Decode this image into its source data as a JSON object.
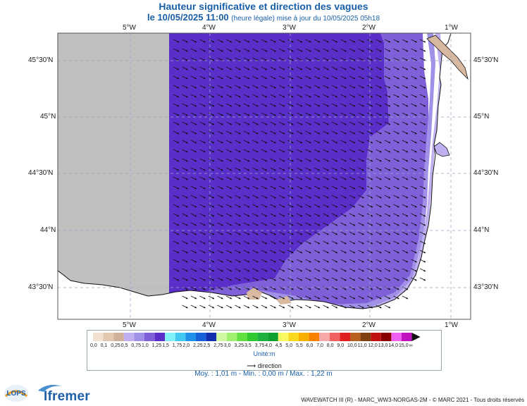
{
  "title": "Hauteur significative et direction des vagues",
  "subtitle_main": "le 10/05/2025 11:00",
  "subtitle_small": "(heure légale) mise à jour du 10/05/2025 05h18",
  "lon_labels": [
    "5°W",
    "4°W",
    "3°W",
    "2°W",
    "1°W"
  ],
  "lat_labels": [
    "45°30'N",
    "45°N",
    "44°30'N",
    "44°N",
    "43°30'N"
  ],
  "legend": {
    "labels": [
      "0,0",
      "0,1",
      "0,25",
      "0,5",
      "0,75",
      "1,0",
      "1,25",
      "1,5",
      "1,75",
      "2,0",
      "2,25",
      "2,5",
      "2,75",
      "3,0",
      "3,25",
      "3,5",
      "3,75",
      "4,0",
      "4,5",
      "5,0",
      "5,5",
      "6,0",
      "7,0",
      "8,0",
      "9,0",
      "10,0",
      "11,0",
      "12,0",
      "13,0",
      "14,0",
      "15,0",
      "∞"
    ],
    "colors": [
      "#f2e0d0",
      "#e2c8b0",
      "#d0b098",
      "#c0b0f0",
      "#a090e8",
      "#8060d8",
      "#5a2ec8",
      "#80f0f8",
      "#40c8f0",
      "#2090e8",
      "#1860d8",
      "#1030b0",
      "#d0f8a0",
      "#a0f070",
      "#60e040",
      "#30c830",
      "#20b040",
      "#10a030",
      "#f8f860",
      "#f8d820",
      "#f8b000",
      "#f88000",
      "#f8a8a8",
      "#f06060",
      "#e02020",
      "#b86020",
      "#804010",
      "#c01010",
      "#8a0000",
      "#f060f0",
      "#c010c0"
    ],
    "unit": "Unité:m",
    "direction": "direction"
  },
  "stats": "Moy. : 1,01 m   -   Min. : 0,00 m / Max. : 1,22 m",
  "footer": "WAVEWATCH III (R) - MARC_WW3-NORGAS-2M - © MARC 2021 - Tous droits réservés",
  "logo_left": "LOPS",
  "logo_right": "Ifremer",
  "map_data": {
    "lon_range": [
      -5.9,
      -0.7
    ],
    "lat_range": [
      43.2,
      45.75
    ],
    "mean_wave_height_m": 1.01,
    "min_wave_height_m": 0.0,
    "max_wave_height_m": 1.22
  }
}
